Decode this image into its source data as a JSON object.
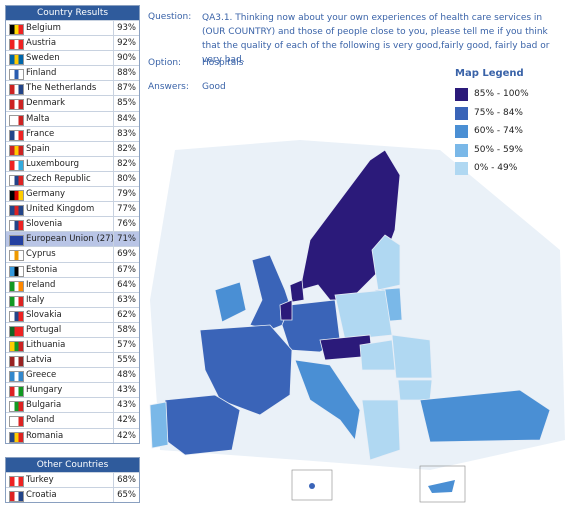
{
  "results": {
    "title": "Country Results",
    "rows": [
      [
        "Belgium",
        "93%"
      ],
      [
        "Austria",
        "92%"
      ],
      [
        "Sweden",
        "90%"
      ],
      [
        "Finland",
        "88%"
      ],
      [
        "The Netherlands",
        "87%"
      ],
      [
        "Denmark",
        "85%"
      ],
      [
        "Malta",
        "84%"
      ],
      [
        "France",
        "83%"
      ],
      [
        "Spain",
        "82%"
      ],
      [
        "Luxembourg",
        "82%"
      ],
      [
        "Czech Republic",
        "80%"
      ],
      [
        "Germany",
        "79%"
      ],
      [
        "United Kingdom",
        "77%"
      ],
      [
        "Slovenia",
        "76%"
      ],
      [
        "European Union (27)",
        "71%"
      ],
      [
        "Cyprus",
        "69%"
      ],
      [
        "Estonia",
        "67%"
      ],
      [
        "Ireland",
        "64%"
      ],
      [
        "Italy",
        "63%"
      ],
      [
        "Slovakia",
        "62%"
      ],
      [
        "Portugal",
        "58%"
      ],
      [
        "Lithuania",
        "57%"
      ],
      [
        "Latvia",
        "55%"
      ],
      [
        "Greece",
        "48%"
      ],
      [
        "Hungary",
        "43%"
      ],
      [
        "Bulgaria",
        "43%"
      ],
      [
        "Poland",
        "42%"
      ],
      [
        "Romania",
        "42%"
      ]
    ]
  },
  "other": {
    "title": "Other Countries",
    "rows": [
      [
        "Turkey",
        "68%"
      ],
      [
        "Croatia",
        "65%"
      ]
    ]
  },
  "question": {
    "label": "Question:",
    "text": "QA3.1. Thinking now about your own experiences of health care services in (OUR COUNTRY) and those of people close to you, please tell me if you think that the quality of each of the following is very good,fairly good, fairly bad or very bad."
  },
  "option": {
    "label": "Option:",
    "text": "Hospitals"
  },
  "answers": {
    "label": "Answers:",
    "text": "Good"
  },
  "legend": {
    "title": "Map Legend",
    "items": [
      "85% - 100%",
      "75% - 84%",
      "60% - 74%",
      "50% - 59%",
      "0% - 49%"
    ]
  }
}
